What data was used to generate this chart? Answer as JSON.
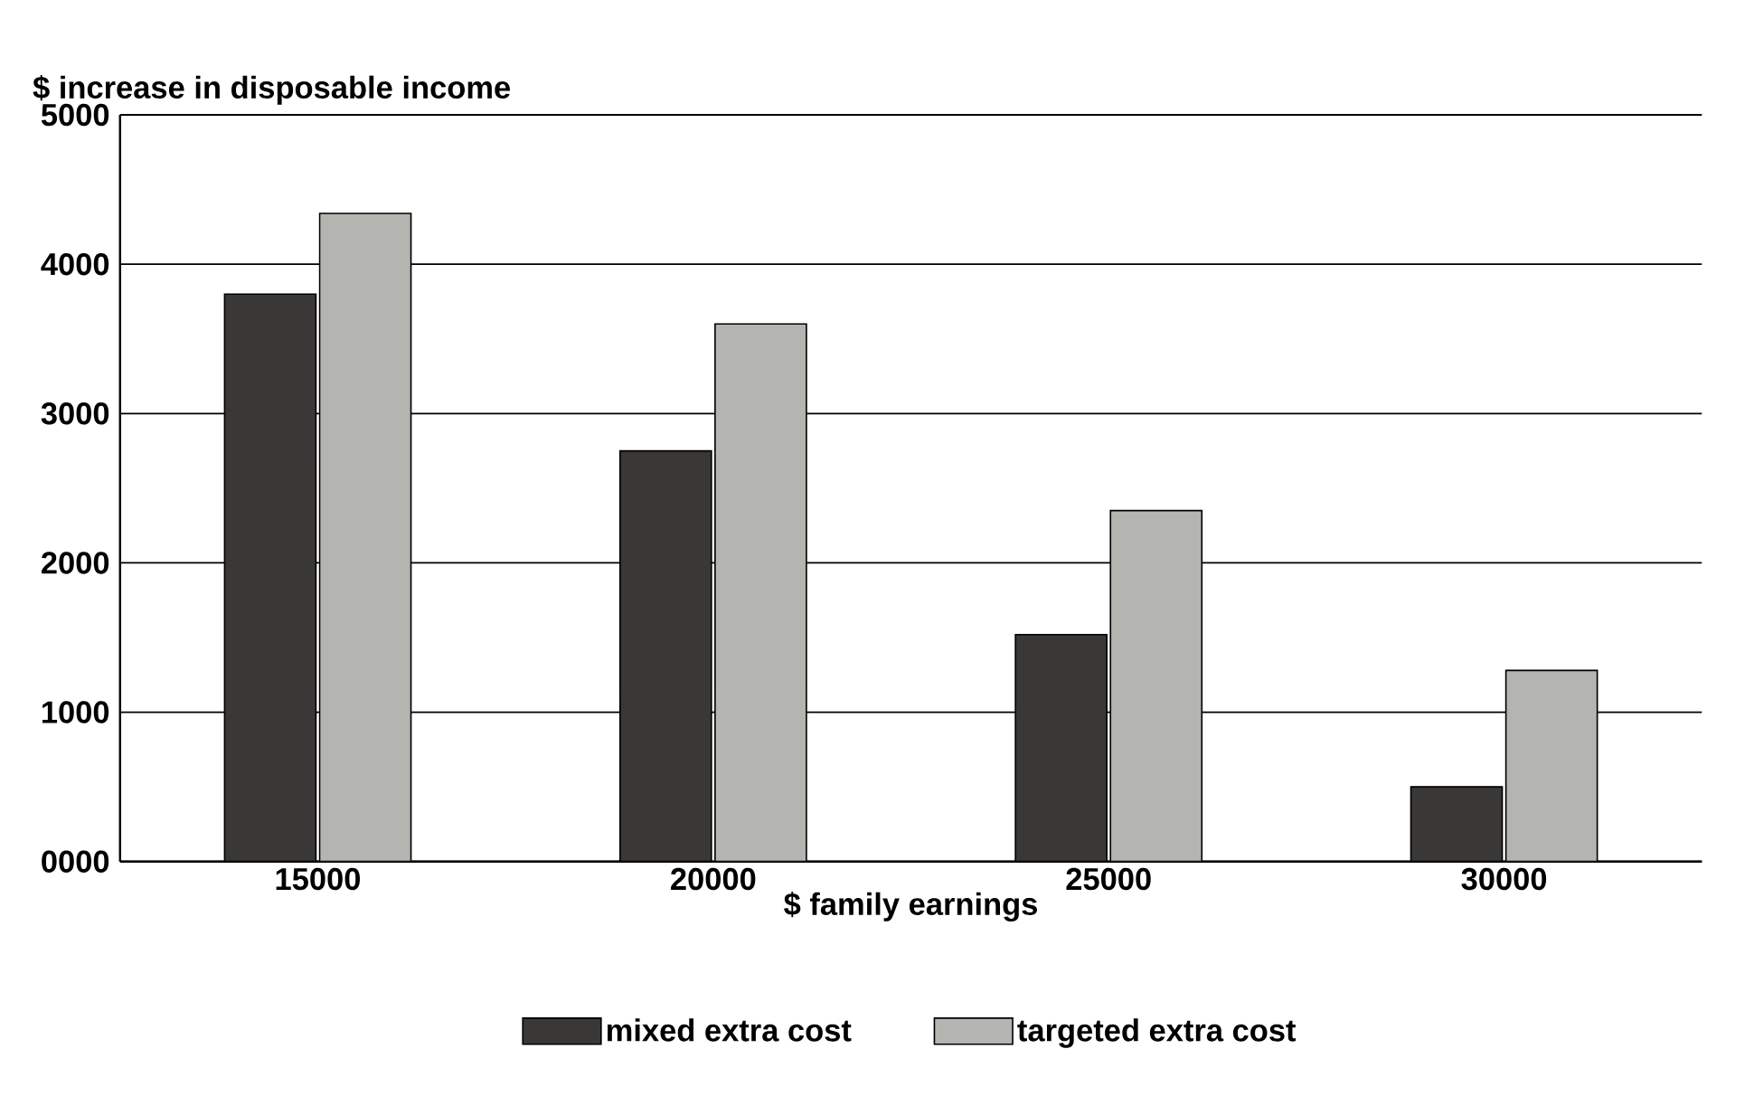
{
  "chart_data": {
    "type": "bar",
    "ylabel": "$ increase in disposable income",
    "xlabel": "$ family earnings",
    "categories": [
      "15000",
      "20000",
      "25000",
      "30000"
    ],
    "series": [
      {
        "name": "mixed extra cost",
        "color": "#3a3836",
        "values": [
          3800,
          2750,
          1520,
          500
        ]
      },
      {
        "name": "targeted extra cost",
        "color": "#b4b4b0",
        "values": [
          4340,
          3600,
          2350,
          1280
        ]
      }
    ],
    "ylim": [
      0,
      5000
    ],
    "yticks": [
      {
        "value": 0,
        "label": "0000"
      },
      1000,
      2000,
      3000,
      4000,
      5000
    ],
    "grid": "y",
    "legend": "bottom"
  }
}
